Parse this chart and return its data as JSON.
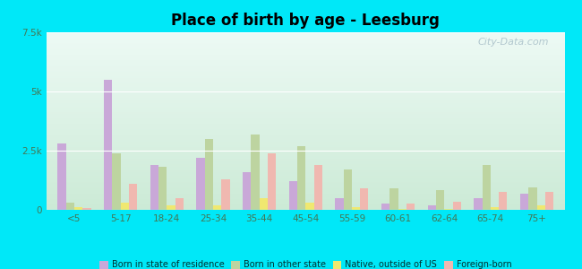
{
  "title": "Place of birth by age - Leesburg",
  "categories": [
    "<5",
    "5-17",
    "18-24",
    "25-34",
    "35-44",
    "45-54",
    "55-59",
    "60-61",
    "62-64",
    "65-74",
    "75+"
  ],
  "born_in_state": [
    2800,
    5500,
    1900,
    2200,
    1600,
    1200,
    500,
    250,
    200,
    500,
    700
  ],
  "born_other_state": [
    300,
    2400,
    1800,
    3000,
    3200,
    2700,
    1700,
    900,
    850,
    1900,
    950
  ],
  "native_outside": [
    100,
    300,
    200,
    200,
    500,
    300,
    100,
    50,
    50,
    100,
    200
  ],
  "foreign_born": [
    80,
    1100,
    500,
    1300,
    2400,
    1900,
    900,
    250,
    350,
    750,
    750
  ],
  "colors": {
    "born_in_state": "#c9a8d8",
    "born_other_state": "#bdd4a0",
    "native_outside": "#f0e870",
    "foreign_born": "#f0b8b0"
  },
  "ylim": [
    0,
    7500
  ],
  "yticks": [
    0,
    2500,
    5000,
    7500
  ],
  "ytick_labels": [
    "0",
    "2.5k",
    "5k",
    "7.5k"
  ],
  "legend_labels": [
    "Born in state of residence",
    "Born in other state",
    "Native, outside of US",
    "Foreign-born"
  ],
  "background_outer": "#00e8f8",
  "watermark": "City-Data.com",
  "bar_width": 0.18
}
